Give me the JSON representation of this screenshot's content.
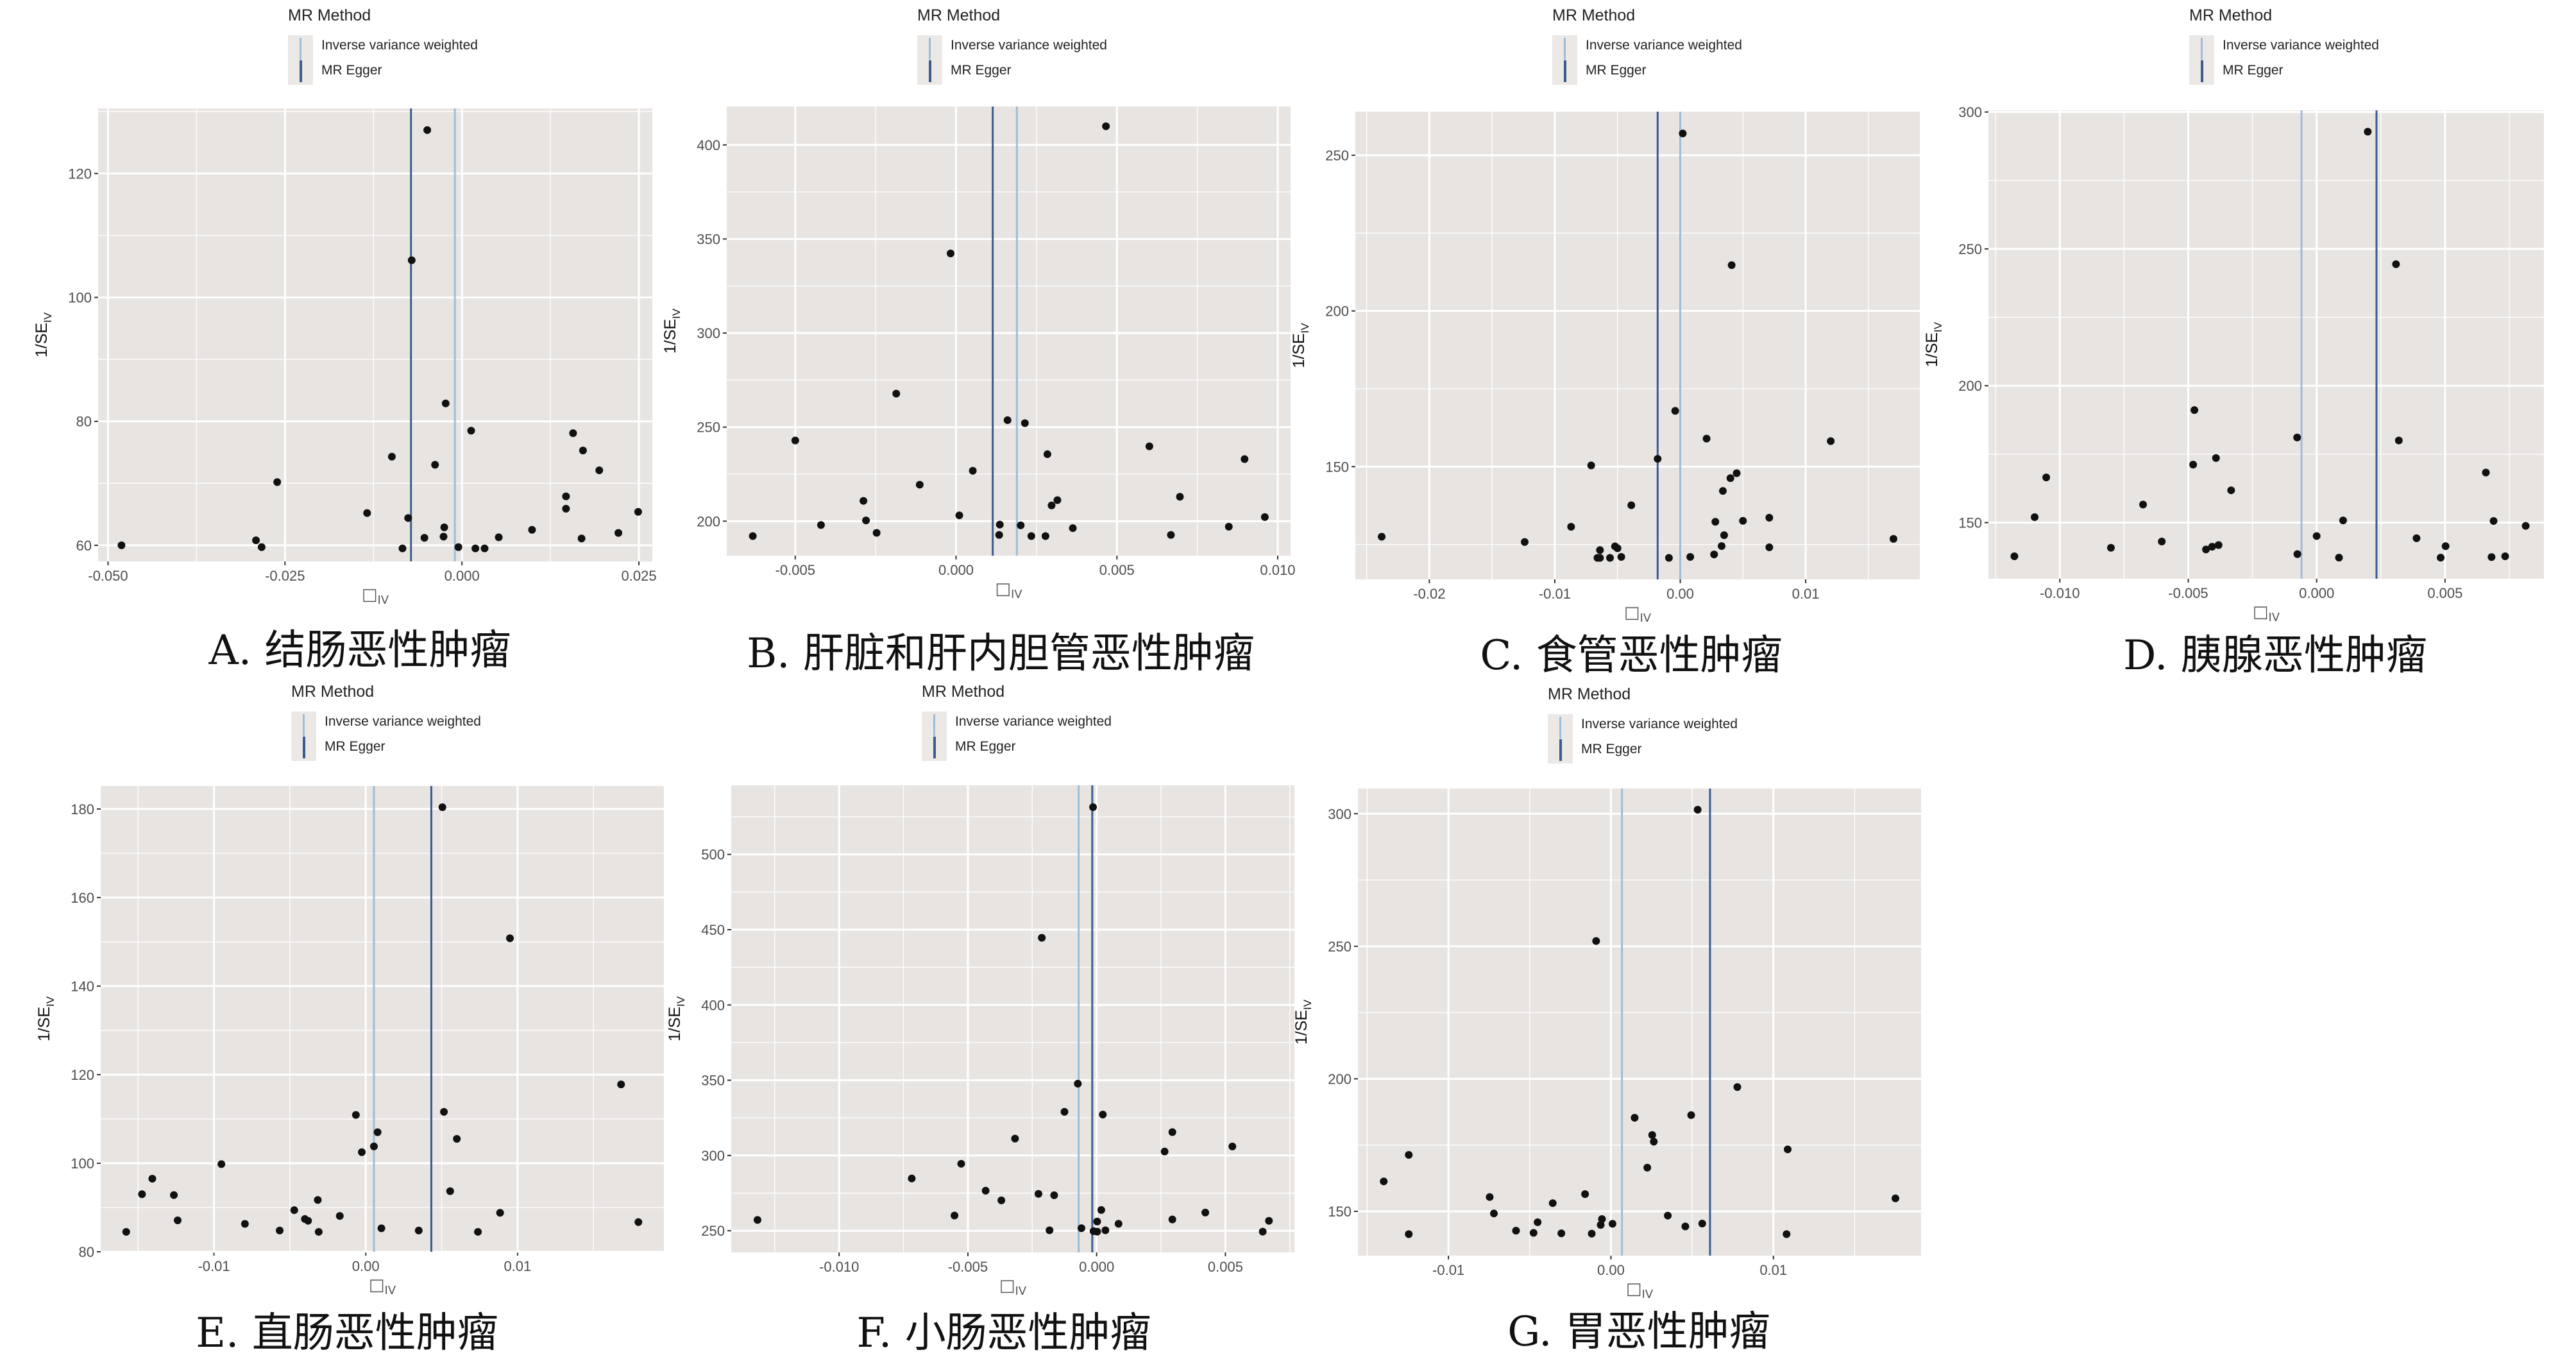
{
  "figure": {
    "legend_title": "MR Method",
    "legend_items": [
      "Inverse variance weighted",
      "MR Egger"
    ],
    "x_axis_label": "□",
    "x_axis_sub": "IV",
    "y_axis_label": "1/SE",
    "y_axis_sub": "IV",
    "colors": {
      "panel_bg": "#e8e4e1",
      "grid": "#ffffff",
      "point": "#111111",
      "ivw": "#9dbdd8",
      "egger": "#3b5d8e"
    }
  },
  "chart_data": [
    {
      "type": "scatter",
      "caption": "A. 结肠恶性肿瘤",
      "xlim": [
        -0.0514,
        0.0269
      ],
      "ylim": [
        57.4,
        130.5
      ],
      "xticks": [
        -0.05,
        -0.025,
        0,
        0.025
      ],
      "xtick_labels": [
        "-0.050",
        "-0.025",
        "0.000",
        "0.025"
      ],
      "yticks": [
        60,
        80,
        100,
        120
      ],
      "ytick_labels": [
        "60",
        "80",
        "100",
        "120"
      ],
      "lines": {
        "ivw": -0.001,
        "egger": -0.0072
      },
      "points": [
        [
          -0.0049,
          127.0
        ],
        [
          -0.0071,
          106.0
        ],
        [
          -0.0023,
          82.9
        ],
        [
          0.0013,
          78.5
        ],
        [
          -0.0099,
          74.3
        ],
        [
          -0.0038,
          73.0
        ],
        [
          -0.0261,
          70.2
        ],
        [
          -0.0134,
          65.2
        ],
        [
          -0.0076,
          64.4
        ],
        [
          -0.0025,
          62.9
        ],
        [
          -0.0026,
          61.4
        ],
        [
          -0.0053,
          61.2
        ],
        [
          -0.0084,
          59.5
        ],
        [
          -0.0005,
          59.7
        ],
        [
          0.0019,
          59.5
        ],
        [
          0.0032,
          59.5
        ],
        [
          0.0052,
          61.3
        ],
        [
          0.0099,
          62.5
        ],
        [
          0.0147,
          67.9
        ],
        [
          0.0147,
          65.9
        ],
        [
          0.0157,
          78.1
        ],
        [
          0.0171,
          75.3
        ],
        [
          0.0194,
          72.1
        ],
        [
          0.0169,
          61.1
        ],
        [
          0.0221,
          62.0
        ],
        [
          0.0249,
          65.4
        ],
        [
          -0.0481,
          60.0
        ],
        [
          -0.0291,
          60.8
        ],
        [
          -0.0283,
          59.7
        ]
      ]
    },
    {
      "type": "scatter",
      "caption": "B. 肝脏和肝内胆管恶性肿瘤",
      "xlim": [
        -0.00713,
        0.0104
      ],
      "ylim": [
        181.7,
        420.4
      ],
      "xticks": [
        -0.005,
        0,
        0.005,
        0.01
      ],
      "xtick_labels": [
        "-0.005",
        "0.000",
        "0.005",
        "0.010"
      ],
      "yticks": [
        200,
        250,
        300,
        350,
        400
      ],
      "ytick_labels": [
        "200",
        "250",
        "300",
        "350",
        "400"
      ],
      "lines": {
        "ivw": 0.00189,
        "egger": 0.00114
      },
      "points": [
        [
          0.00466,
          409.9
        ],
        [
          -0.00017,
          342.3
        ],
        [
          -0.00186,
          267.8
        ],
        [
          -0.005,
          242.9
        ],
        [
          0.0016,
          253.7
        ],
        [
          0.00214,
          252.1
        ],
        [
          0.00601,
          239.8
        ],
        [
          0.00284,
          235.6
        ],
        [
          0.00897,
          233.0
        ],
        [
          0.00052,
          226.8
        ],
        [
          -0.00113,
          219.4
        ],
        [
          -0.00288,
          210.8
        ],
        [
          0.00696,
          213.0
        ],
        [
          0.00315,
          211.2
        ],
        [
          0.00297,
          208.4
        ],
        [
          0.0001,
          203.1
        ],
        [
          0.0096,
          202.2
        ],
        [
          -0.0028,
          200.4
        ],
        [
          -0.0042,
          198.0
        ],
        [
          0.00136,
          198.2
        ],
        [
          0.00201,
          197.8
        ],
        [
          0.00848,
          197.1
        ],
        [
          0.00363,
          196.3
        ],
        [
          -0.00247,
          193.8
        ],
        [
          -0.00632,
          192.1
        ],
        [
          0.00134,
          192.7
        ],
        [
          0.00234,
          192.1
        ],
        [
          0.00278,
          192.1
        ],
        [
          0.00668,
          192.7
        ]
      ]
    },
    {
      "type": "scatter",
      "caption": "C. 食管恶性肿瘤",
      "xlim": [
        -0.0259,
        0.0191
      ],
      "ylim": [
        113.8,
        264.0
      ],
      "xticks": [
        -0.02,
        -0.01,
        0,
        0.01
      ],
      "xtick_labels": [
        "-0.02",
        "-0.01",
        "0.00",
        "0.01"
      ],
      "yticks": [
        150,
        200,
        250
      ],
      "ytick_labels": [
        "150",
        "200",
        "250"
      ],
      "lines": {
        "ivw": 0.0,
        "egger": -0.0018
      },
      "points": [
        [
          0.0002,
          257.0
        ],
        [
          0.0041,
          214.7
        ],
        [
          -0.0004,
          167.9
        ],
        [
          0.0021,
          159.0
        ],
        [
          0.012,
          158.2
        ],
        [
          -0.0018,
          152.5
        ],
        [
          -0.0071,
          150.4
        ],
        [
          0.0045,
          147.9
        ],
        [
          0.004,
          146.3
        ],
        [
          0.0034,
          142.2
        ],
        [
          -0.0039,
          137.6
        ],
        [
          0.0071,
          133.6
        ],
        [
          0.005,
          132.6
        ],
        [
          0.0028,
          132.3
        ],
        [
          -0.0087,
          130.7
        ],
        [
          0.0035,
          128.0
        ],
        [
          -0.0238,
          127.5
        ],
        [
          -0.0124,
          125.8
        ],
        [
          0.017,
          126.8
        ],
        [
          0.0033,
          124.5
        ],
        [
          0.0071,
          124.1
        ],
        [
          -0.0052,
          124.4
        ],
        [
          -0.005,
          123.8
        ],
        [
          -0.0064,
          123.2
        ],
        [
          -0.0066,
          120.7
        ],
        [
          -0.0064,
          120.7
        ],
        [
          -0.0056,
          120.7
        ],
        [
          -0.0047,
          121.0
        ],
        [
          -0.0009,
          120.7
        ],
        [
          0.0008,
          121.0
        ],
        [
          0.0027,
          121.8
        ]
      ]
    },
    {
      "type": "scatter",
      "caption": "D. 胰腺恶性肿瘤",
      "xlim": [
        -0.01278,
        0.00885
      ],
      "ylim": [
        129.5,
        300.6
      ],
      "xticks": [
        -0.01,
        -0.005,
        0,
        0.005
      ],
      "xtick_labels": [
        "-0.010",
        "-0.005",
        "0.000",
        "0.005"
      ],
      "yticks": [
        150,
        200,
        250,
        300
      ],
      "ytick_labels": [
        "150",
        "200",
        "250",
        "300"
      ],
      "lines": {
        "ivw": -0.00059,
        "egger": 0.00233
      },
      "points": [
        [
          0.00199,
          292.8
        ],
        [
          0.00309,
          244.4
        ],
        [
          -0.00476,
          191.1
        ],
        [
          -0.00076,
          181.1
        ],
        [
          0.0032,
          180.0
        ],
        [
          -0.00392,
          173.6
        ],
        [
          -0.00481,
          171.2
        ],
        [
          0.00659,
          168.3
        ],
        [
          -0.01053,
          166.5
        ],
        [
          -0.00333,
          161.8
        ],
        [
          -0.00676,
          156.6
        ],
        [
          -0.01098,
          152.0
        ],
        [
          0.00103,
          150.8
        ],
        [
          0.00689,
          150.6
        ],
        [
          0.00814,
          148.8
        ],
        [
          0.0,
          145.1
        ],
        [
          0.00389,
          144.3
        ],
        [
          -0.00603,
          143.1
        ],
        [
          -0.00801,
          140.8
        ],
        [
          -0.00382,
          141.8
        ],
        [
          -0.00407,
          141.2
        ],
        [
          -0.00431,
          140.2
        ],
        [
          0.00502,
          141.4
        ],
        [
          -0.00075,
          138.5
        ],
        [
          -0.01177,
          137.7
        ],
        [
          0.00087,
          137.2
        ],
        [
          0.00483,
          137.2
        ],
        [
          0.00681,
          137.4
        ],
        [
          0.00734,
          137.7
        ]
      ]
    },
    {
      "type": "scatter",
      "caption": "E. 直肠恶性肿瘤",
      "xlim": [
        -0.01746,
        0.01964
      ],
      "ylim": [
        80.0,
        185.2
      ],
      "xticks": [
        -0.01,
        0,
        0.01
      ],
      "xtick_labels": [
        "-0.01",
        "0.00",
        "0.01"
      ],
      "yticks": [
        80,
        100,
        120,
        140,
        160,
        180
      ],
      "ytick_labels": [
        "80",
        "100",
        "120",
        "140",
        "160",
        "180"
      ],
      "lines": {
        "ivw": 0.00054,
        "egger": 0.00432
      },
      "points": [
        [
          0.00505,
          180.4
        ],
        [
          0.0095,
          150.8
        ],
        [
          0.01682,
          117.8
        ],
        [
          0.00515,
          111.6
        ],
        [
          -0.00065,
          110.9
        ],
        [
          0.00078,
          107.0
        ],
        [
          0.006,
          105.5
        ],
        [
          0.00054,
          103.8
        ],
        [
          -0.00026,
          102.5
        ],
        [
          -0.00951,
          99.8
        ],
        [
          -0.01406,
          96.5
        ],
        [
          -0.01474,
          93.0
        ],
        [
          -0.01264,
          92.8
        ],
        [
          0.00556,
          93.7
        ],
        [
          -0.00316,
          91.7
        ],
        [
          -0.00471,
          89.4
        ],
        [
          0.00885,
          88.8
        ],
        [
          -0.00171,
          88.1
        ],
        [
          -0.00401,
          87.4
        ],
        [
          -0.0038,
          87.0
        ],
        [
          -0.01239,
          87.1
        ],
        [
          0.01796,
          86.7
        ],
        [
          -0.00796,
          86.3
        ],
        [
          0.00103,
          85.3
        ],
        [
          -0.00567,
          84.8
        ],
        [
          -0.0031,
          84.5
        ],
        [
          0.00349,
          84.8
        ],
        [
          0.00739,
          84.5
        ],
        [
          -0.01578,
          84.5
        ]
      ]
    },
    {
      "type": "scatter",
      "caption": "F. 小肠恶性肿瘤",
      "xlim": [
        -0.01419,
        0.00768
      ],
      "ylim": [
        235.6,
        545.9
      ],
      "xticks": [
        -0.01,
        -0.005,
        0,
        0.005
      ],
      "xtick_labels": [
        "-0.010",
        "-0.005",
        "0.000",
        "0.005"
      ],
      "yticks": [
        250,
        300,
        350,
        400,
        450,
        500
      ],
      "ytick_labels": [
        "250",
        "300",
        "350",
        "400",
        "450",
        "500"
      ],
      "lines": {
        "ivw": -0.0007,
        "egger": -0.00017
      },
      "points": [
        [
          -0.00014,
          531.4
        ],
        [
          -0.00213,
          444.6
        ],
        [
          -0.00073,
          347.7
        ],
        [
          -0.00125,
          329.0
        ],
        [
          0.00024,
          327.2
        ],
        [
          -0.00317,
          311.2
        ],
        [
          0.00294,
          315.5
        ],
        [
          0.00527,
          306.0
        ],
        [
          0.00264,
          302.6
        ],
        [
          -0.00526,
          294.5
        ],
        [
          -0.00718,
          284.7
        ],
        [
          -0.00431,
          276.6
        ],
        [
          -0.00226,
          274.5
        ],
        [
          -0.00165,
          273.6
        ],
        [
          -0.0037,
          270.2
        ],
        [
          0.00018,
          263.8
        ],
        [
          0.00422,
          262.1
        ],
        [
          -0.01317,
          257.2
        ],
        [
          0.00669,
          256.6
        ],
        [
          -0.00552,
          260.1
        ],
        [
          0.00294,
          257.5
        ],
        [
          2e-05,
          256.1
        ],
        [
          0.00085,
          254.6
        ],
        [
          -0.00059,
          251.7
        ],
        [
          -0.00183,
          250.3
        ],
        [
          -0.00012,
          249.7
        ],
        [
          2e-05,
          249.4
        ],
        [
          0.00034,
          250.3
        ],
        [
          0.00645,
          249.4
        ]
      ]
    },
    {
      "type": "scatter",
      "caption": "G. 胃恶性肿瘤",
      "xlim": [
        -0.01557,
        0.01909
      ],
      "ylim": [
        133.3,
        309.5
      ],
      "xticks": [
        -0.01,
        0,
        0.01
      ],
      "xtick_labels": [
        "-0.01",
        "0.00",
        "0.01"
      ],
      "yticks": [
        150,
        200,
        250,
        300
      ],
      "ytick_labels": [
        "150",
        "200",
        "250",
        "300"
      ],
      "lines": {
        "ivw": 0.00068,
        "egger": 0.0061
      },
      "points": [
        [
          0.00534,
          301.5
        ],
        [
          -0.00091,
          252.0
        ],
        [
          0.00778,
          196.9
        ],
        [
          0.00494,
          186.3
        ],
        [
          0.00146,
          185.3
        ],
        [
          0.00254,
          178.8
        ],
        [
          0.00264,
          176.3
        ],
        [
          0.01088,
          173.4
        ],
        [
          -0.01244,
          171.3
        ],
        [
          0.00224,
          166.5
        ],
        [
          -0.01398,
          161.3
        ],
        [
          -0.00159,
          156.5
        ],
        [
          -0.00746,
          155.4
        ],
        [
          0.01751,
          154.9
        ],
        [
          -0.00358,
          153.1
        ],
        [
          -0.0072,
          149.2
        ],
        [
          0.0035,
          148.4
        ],
        [
          -0.00055,
          147.1
        ],
        [
          -0.00451,
          145.9
        ],
        [
          0.00562,
          145.4
        ],
        [
          -0.00063,
          144.9
        ],
        [
          0.0001,
          145.3
        ],
        [
          0.00458,
          144.3
        ],
        [
          -0.00584,
          142.7
        ],
        [
          -0.00476,
          141.9
        ],
        [
          -0.00305,
          141.7
        ],
        [
          -0.00118,
          141.6
        ],
        [
          -0.01244,
          141.4
        ],
        [
          0.01081,
          141.4
        ]
      ]
    }
  ]
}
